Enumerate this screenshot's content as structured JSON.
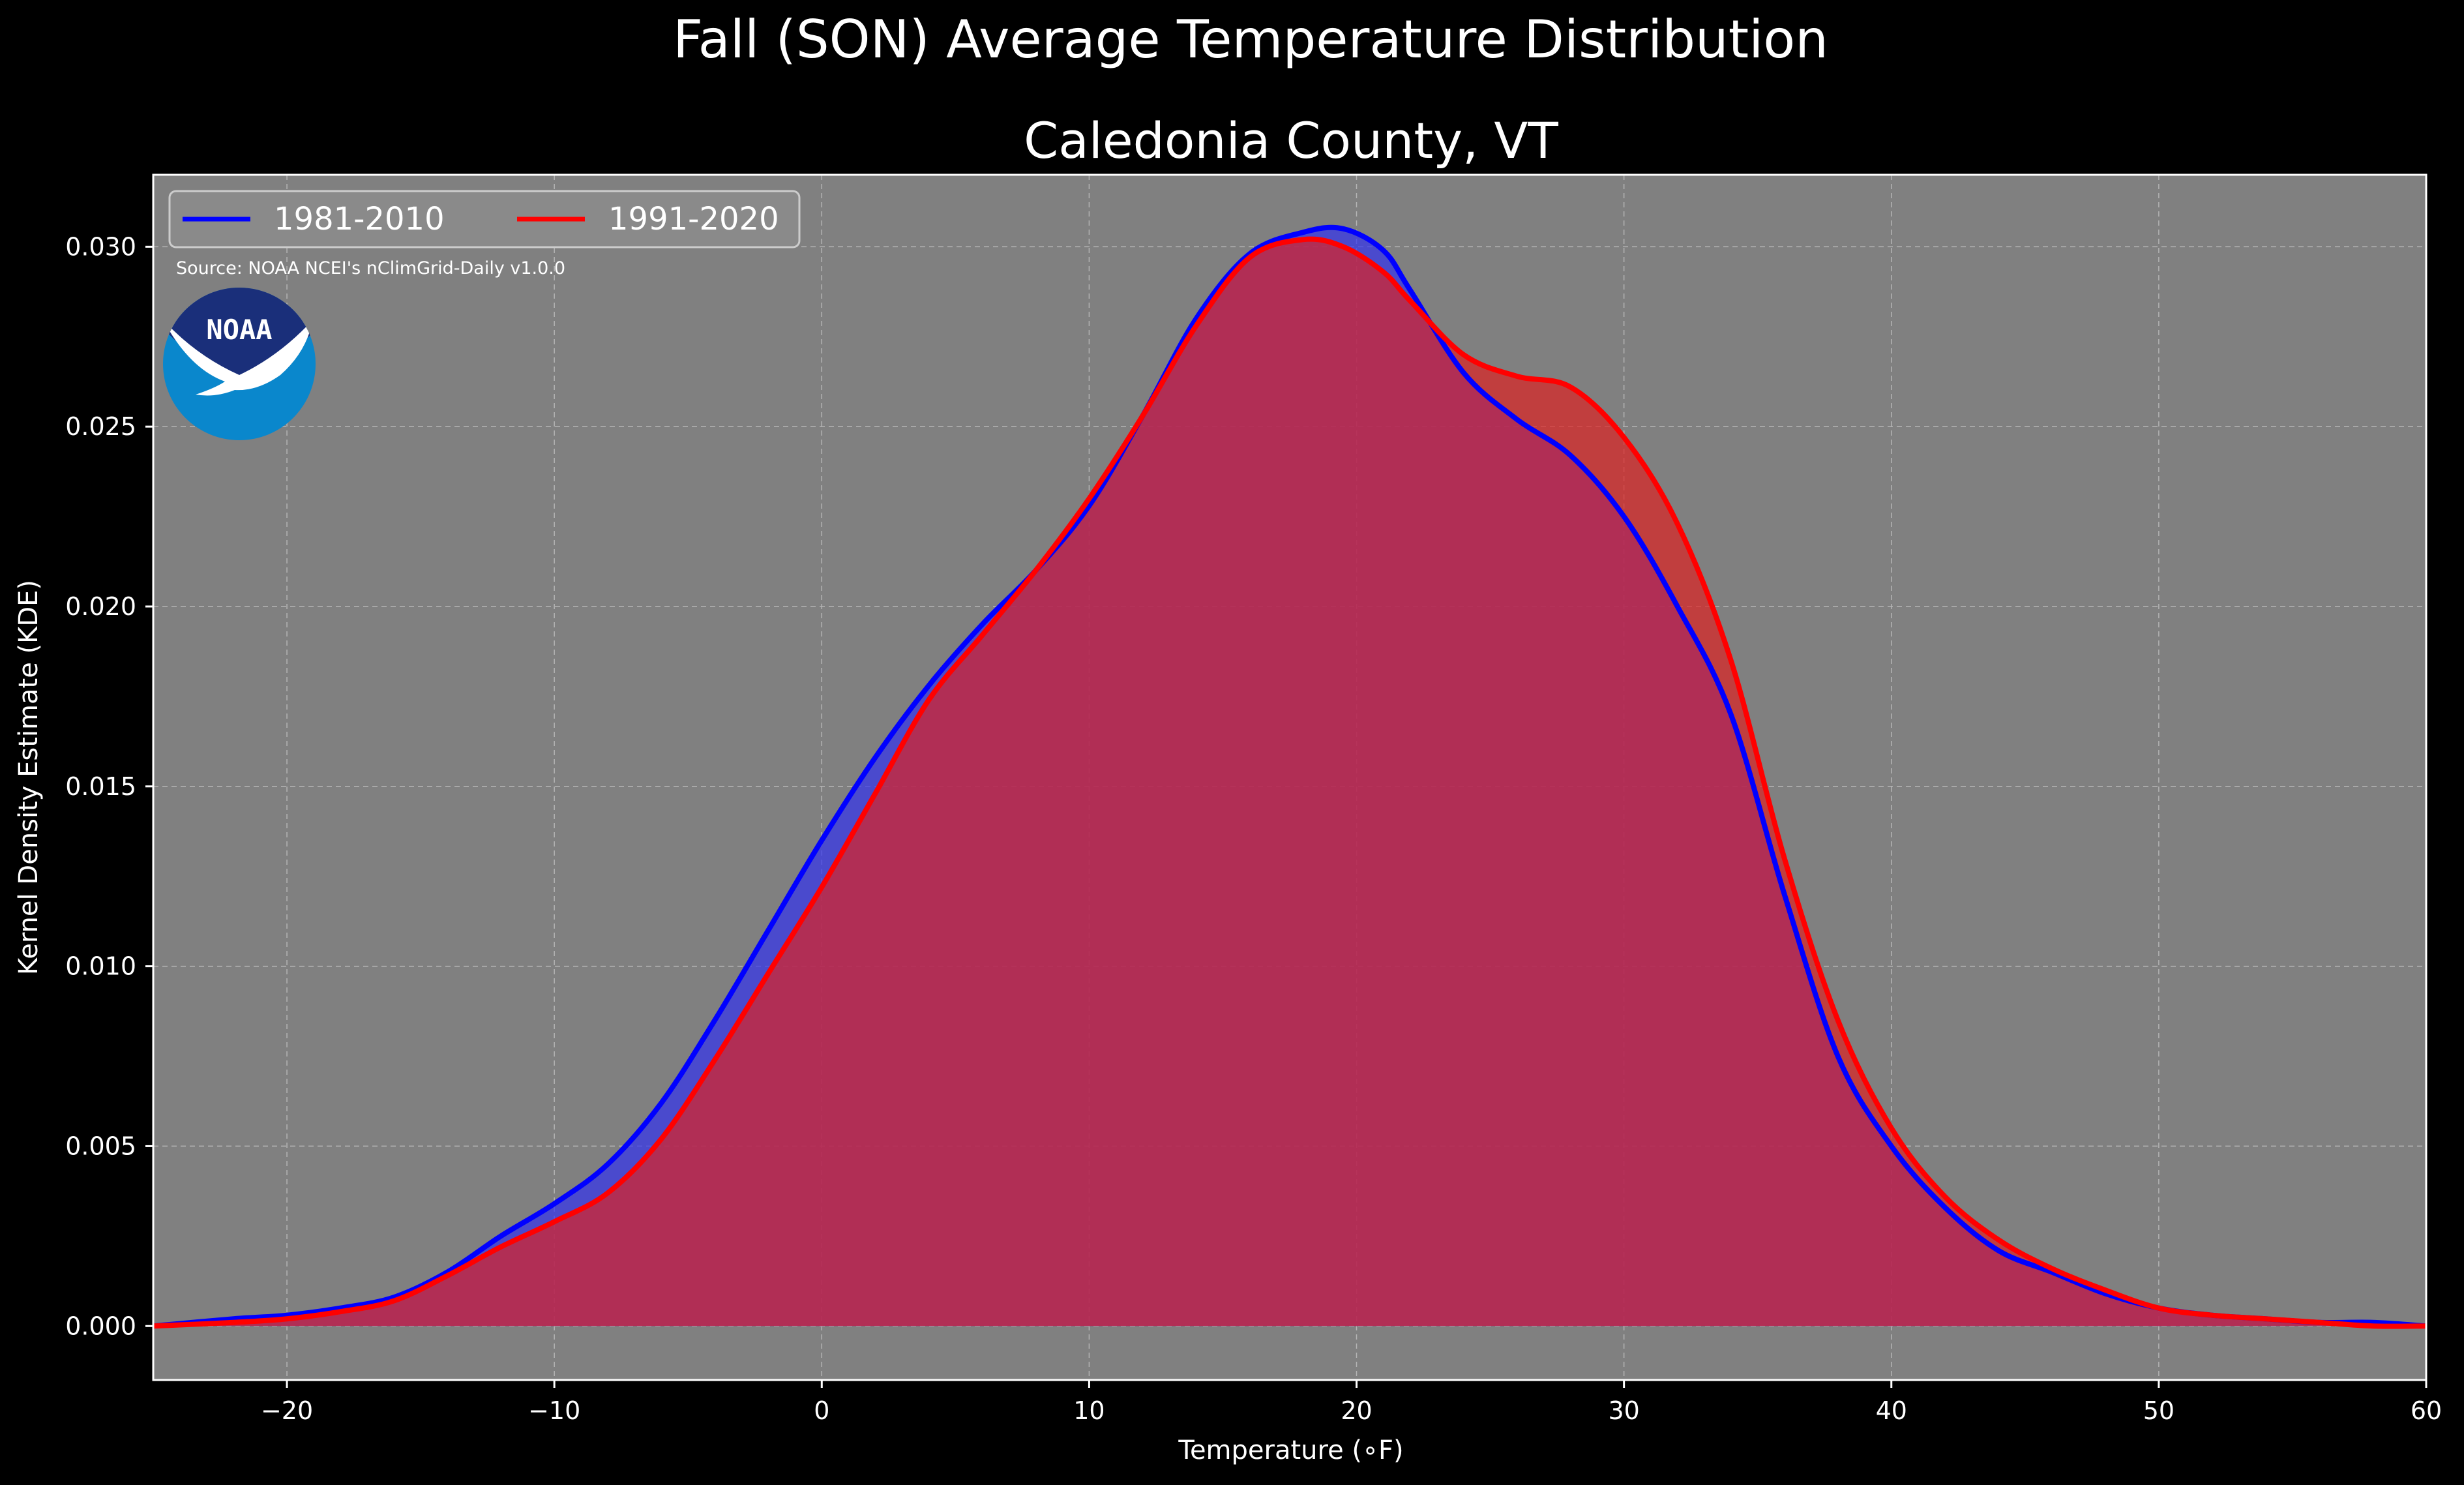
{
  "chart_data": {
    "type": "area",
    "suptitle": "Fall (SON) Average Temperature Distribution",
    "title": "Caledonia County, VT",
    "xlabel": "Temperature (∘F)",
    "ylabel": "Kernel Density Estimate (KDE)",
    "xlim": [
      -25,
      60
    ],
    "ylim": [
      -0.0015,
      0.032
    ],
    "x_ticks": [
      -20,
      -10,
      0,
      10,
      20,
      30,
      40,
      50,
      60
    ],
    "y_ticks": [
      0.0,
      0.005,
      0.01,
      0.015,
      0.02,
      0.025,
      0.03
    ],
    "y_tick_labels": [
      "0.000",
      "0.005",
      "0.010",
      "0.015",
      "0.020",
      "0.025",
      "0.030"
    ],
    "grid": true,
    "legend_position": "top-left",
    "source_note": "Source: NOAA NCEI's nClimGrid-Daily v1.0.0",
    "logo_text": "NOAA",
    "colors": {
      "plot_background": "#808080",
      "figure_background": "#000000",
      "grid": "#b4b4b4"
    },
    "x": [
      -25,
      -22,
      -20,
      -18,
      -16,
      -14,
      -12,
      -10,
      -8,
      -6,
      -4,
      -2,
      0,
      2,
      4,
      6,
      8,
      10,
      12,
      14,
      16,
      18,
      19.5,
      21,
      22,
      24,
      26,
      28,
      30,
      32,
      34,
      36,
      38,
      40,
      42,
      44,
      46,
      48,
      50,
      52,
      54,
      56,
      58,
      60
    ],
    "series": [
      {
        "name": "1981-2010",
        "color": "#0000ff",
        "fill": "#3333ee",
        "values": [
          0.0,
          0.0002,
          0.0003,
          0.0005,
          0.0008,
          0.0015,
          0.0025,
          0.0034,
          0.0045,
          0.0062,
          0.0085,
          0.011,
          0.0135,
          0.0158,
          0.0178,
          0.0195,
          0.021,
          0.0228,
          0.0253,
          0.028,
          0.0298,
          0.0304,
          0.0305,
          0.0299,
          0.0288,
          0.0265,
          0.0252,
          0.0242,
          0.0225,
          0.02,
          0.017,
          0.012,
          0.0075,
          0.005,
          0.0033,
          0.0021,
          0.0015,
          0.0009,
          0.0005,
          0.0003,
          0.0002,
          0.0001,
          0.0001,
          0.0
        ]
      },
      {
        "name": "1991-2020",
        "color": "#ff0000",
        "fill": "#dd2222",
        "values": [
          0.0,
          0.0001,
          0.0002,
          0.0004,
          0.0007,
          0.0014,
          0.0022,
          0.0029,
          0.0037,
          0.0052,
          0.0074,
          0.0098,
          0.0122,
          0.0148,
          0.0174,
          0.0192,
          0.021,
          0.023,
          0.0253,
          0.0278,
          0.0297,
          0.0302,
          0.03,
          0.0293,
          0.0285,
          0.027,
          0.0264,
          0.0261,
          0.0247,
          0.0223,
          0.0185,
          0.013,
          0.0085,
          0.0055,
          0.0036,
          0.0024,
          0.0016,
          0.001,
          0.0005,
          0.0003,
          0.0002,
          0.0001,
          0.0,
          0.0
        ]
      }
    ]
  }
}
